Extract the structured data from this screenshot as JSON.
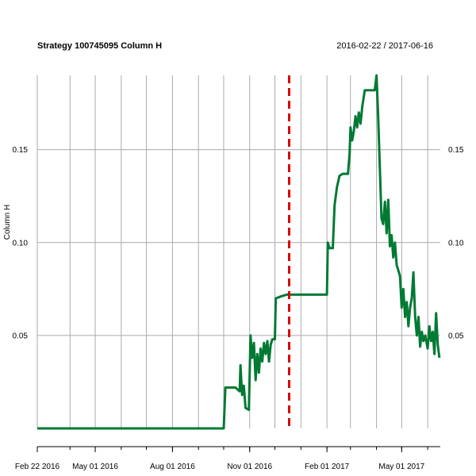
{
  "chart_data": {
    "type": "line",
    "title": "Strategy 100745095 Column H",
    "date_range": "2016-02-22 / 2017-06-16",
    "ylabel": "Column H",
    "xlabel": "",
    "ylim": [
      0.0,
      0.19
    ],
    "y_ticks": [
      0.05,
      0.1,
      0.15
    ],
    "y_tick_labels": [
      "0.05",
      "0.10",
      "0.15"
    ],
    "x_tick_dates": [
      "2016-02-22",
      "2016-05-01",
      "2016-08-01",
      "2016-11-01",
      "2017-02-01",
      "2017-05-01"
    ],
    "x_tick_labels": [
      "Feb 22 2016",
      "May 01 2016",
      "Aug 01 2016",
      "Nov 01 2016",
      "Feb 01 2017",
      "May 01 2017"
    ],
    "x_grid_dates": [
      "2016-02-22",
      "2016-04-01",
      "2016-05-01",
      "2016-06-01",
      "2016-07-01",
      "2016-08-01",
      "2016-09-01",
      "2016-10-01",
      "2016-11-01",
      "2016-12-01",
      "2017-01-01",
      "2017-02-01",
      "2017-03-01",
      "2017-04-01",
      "2017-05-01",
      "2017-06-01"
    ],
    "x_start": "2016-02-22",
    "x_end": "2017-06-16",
    "vline_date": "2016-12-18",
    "colors": {
      "series": "#007a33",
      "vline": "#dd0000",
      "grid": "#aaaaaa"
    },
    "series": [
      {
        "points": [
          [
            "2016-02-22",
            0.0
          ],
          [
            "2016-10-01",
            0.0
          ],
          [
            "2016-10-03",
            0.022
          ],
          [
            "2016-10-15",
            0.022
          ],
          [
            "2016-10-20",
            0.02
          ],
          [
            "2016-10-21",
            0.034
          ],
          [
            "2016-10-23",
            0.018
          ],
          [
            "2016-10-25",
            0.023
          ],
          [
            "2016-10-27",
            0.011
          ],
          [
            "2016-10-31",
            0.01
          ],
          [
            "2016-11-02",
            0.05
          ],
          [
            "2016-11-04",
            0.038
          ],
          [
            "2016-11-06",
            0.046
          ],
          [
            "2016-11-08",
            0.026
          ],
          [
            "2016-11-10",
            0.04
          ],
          [
            "2016-11-12",
            0.03
          ],
          [
            "2016-11-14",
            0.043
          ],
          [
            "2016-11-16",
            0.036
          ],
          [
            "2016-11-18",
            0.046
          ],
          [
            "2016-11-20",
            0.04
          ],
          [
            "2016-11-22",
            0.047
          ],
          [
            "2016-11-24",
            0.036
          ],
          [
            "2016-11-26",
            0.045
          ],
          [
            "2016-11-28",
            0.048
          ],
          [
            "2016-12-01",
            0.048
          ],
          [
            "2016-12-02",
            0.07
          ],
          [
            "2016-12-08",
            0.071
          ],
          [
            "2016-12-15",
            0.072
          ],
          [
            "2017-02-01",
            0.072
          ],
          [
            "2017-02-02",
            0.1
          ],
          [
            "2017-02-04",
            0.097
          ],
          [
            "2017-02-08",
            0.097
          ],
          [
            "2017-02-10",
            0.12
          ],
          [
            "2017-02-13",
            0.13
          ],
          [
            "2017-02-16",
            0.136
          ],
          [
            "2017-02-20",
            0.137
          ],
          [
            "2017-02-26",
            0.137
          ],
          [
            "2017-02-28",
            0.148
          ],
          [
            "2017-03-01",
            0.162
          ],
          [
            "2017-03-03",
            0.155
          ],
          [
            "2017-03-05",
            0.16
          ],
          [
            "2017-03-07",
            0.168
          ],
          [
            "2017-03-09",
            0.162
          ],
          [
            "2017-03-11",
            0.17
          ],
          [
            "2017-03-13",
            0.164
          ],
          [
            "2017-03-15",
            0.173
          ],
          [
            "2017-03-18",
            0.182
          ],
          [
            "2017-03-30",
            0.182
          ],
          [
            "2017-04-01",
            0.19
          ],
          [
            "2017-04-03",
            0.168
          ],
          [
            "2017-04-05",
            0.14
          ],
          [
            "2017-04-07",
            0.113
          ],
          [
            "2017-04-09",
            0.11
          ],
          [
            "2017-04-11",
            0.122
          ],
          [
            "2017-04-13",
            0.105
          ],
          [
            "2017-04-15",
            0.123
          ],
          [
            "2017-04-17",
            0.098
          ],
          [
            "2017-04-19",
            0.104
          ],
          [
            "2017-04-21",
            0.092
          ],
          [
            "2017-04-23",
            0.1
          ],
          [
            "2017-04-25",
            0.088
          ],
          [
            "2017-04-27",
            0.085
          ],
          [
            "2017-04-29",
            0.082
          ],
          [
            "2017-05-01",
            0.065
          ],
          [
            "2017-05-03",
            0.075
          ],
          [
            "2017-05-05",
            0.06
          ],
          [
            "2017-05-07",
            0.068
          ],
          [
            "2017-05-09",
            0.055
          ],
          [
            "2017-05-11",
            0.065
          ],
          [
            "2017-05-13",
            0.07
          ],
          [
            "2017-05-15",
            0.084
          ],
          [
            "2017-05-17",
            0.06
          ],
          [
            "2017-05-19",
            0.05
          ],
          [
            "2017-05-21",
            0.06
          ],
          [
            "2017-05-23",
            0.044
          ],
          [
            "2017-05-25",
            0.052
          ],
          [
            "2017-05-27",
            0.047
          ],
          [
            "2017-05-29",
            0.05
          ],
          [
            "2017-06-01",
            0.043
          ],
          [
            "2017-06-03",
            0.055
          ],
          [
            "2017-06-05",
            0.047
          ],
          [
            "2017-06-07",
            0.052
          ],
          [
            "2017-06-09",
            0.04
          ],
          [
            "2017-06-11",
            0.062
          ],
          [
            "2017-06-13",
            0.045
          ],
          [
            "2017-06-15",
            0.038
          ]
        ]
      }
    ]
  }
}
